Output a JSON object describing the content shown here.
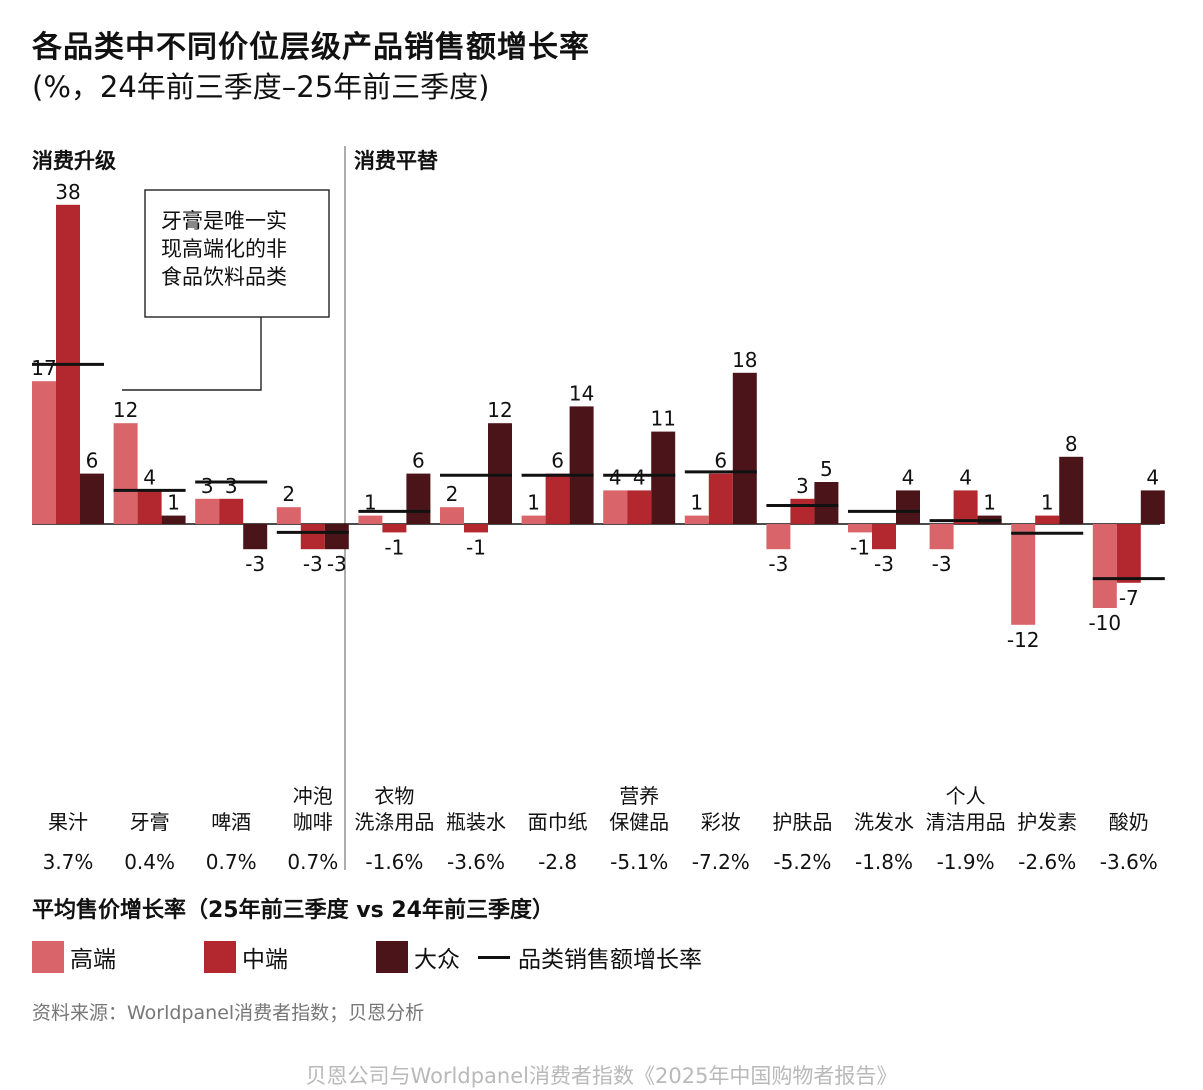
{
  "title": "各品类中不同价位层级产品销售额增长率",
  "subtitle": "(%，24年前三季度–25年前三季度)",
  "price_growth_title": "平均售价增长率（25年前三季度 vs 24年前三季度）",
  "source": "资料来源：Worldpanel消费者指数；贝恩分析",
  "footer": "贝恩公司与Worldpanel消费者指数《2025年中国购物者报告》",
  "annotation": {
    "lines": [
      "牙膏是唯一实",
      "现高端化的非",
      "食品饮料品类"
    ]
  },
  "colors": {
    "high": "#d9646a",
    "mid": "#b2282e",
    "mass": "#4a1418",
    "category_line": "#111111"
  },
  "legend": {
    "high": "高端",
    "mid": "中端",
    "mass": "大众",
    "line": "品类销售额增长率"
  },
  "chart_data": {
    "type": "bar",
    "groups": [
      {
        "label": "消费升级",
        "categories": [
          "果汁",
          "牙膏",
          "啤酒",
          "冲泡咖啡"
        ]
      },
      {
        "label": "消费平替",
        "categories": [
          "衣物洗涤用品",
          "瓶装水",
          "面巾纸",
          "营养保健品",
          "彩妆",
          "护肤品",
          "洗发水",
          "个人清洁用品",
          "护发素",
          "酸奶"
        ]
      }
    ],
    "categories": [
      {
        "name": [
          "果汁"
        ],
        "high": 17,
        "mid": 38,
        "mass": 6,
        "category_growth": 19,
        "price_growth": "3.7%"
      },
      {
        "name": [
          "牙膏"
        ],
        "high": 12,
        "mid": 4,
        "mass": 1,
        "category_growth": 4,
        "price_growth": "0.4%"
      },
      {
        "name": [
          "啤酒"
        ],
        "high": 3,
        "mid": 3,
        "mass": -3,
        "category_growth": 5,
        "price_growth": "0.7%"
      },
      {
        "name": [
          "冲泡",
          "咖啡"
        ],
        "high": 2,
        "mid": -3,
        "mass": -3,
        "category_growth": -1,
        "price_growth": "0.7%"
      },
      {
        "name": [
          "衣物",
          "洗涤用品"
        ],
        "high": 1,
        "mid": -1,
        "mass": 6,
        "category_growth": 1.5,
        "price_growth": "-1.6%"
      },
      {
        "name": [
          "瓶装水"
        ],
        "high": 2,
        "mid": -1,
        "mass": 12,
        "category_growth": 5.8,
        "price_growth": "-3.6%"
      },
      {
        "name": [
          "面巾纸"
        ],
        "high": 1,
        "mid": 6,
        "mass": 14,
        "category_growth": 5.8,
        "price_growth": "-2.8"
      },
      {
        "name": [
          "营养",
          "保健品"
        ],
        "high": 4,
        "mid": 4,
        "mass": 11,
        "category_growth": 5.8,
        "price_growth": "-5.1%"
      },
      {
        "name": [
          "彩妆"
        ],
        "high": 1,
        "mid": 6,
        "mass": 18,
        "category_growth": 6.2,
        "price_growth": "-7.2%"
      },
      {
        "name": [
          "护肤品"
        ],
        "high": -3,
        "mid": 3,
        "mass": 5,
        "category_growth": 2.2,
        "price_growth": "-5.2%"
      },
      {
        "name": [
          "洗发水"
        ],
        "high": -1,
        "mid": -3,
        "mass": 4,
        "category_growth": 1.5,
        "price_growth": "-1.8%"
      },
      {
        "name": [
          "个人",
          "清洁用品"
        ],
        "high": -3,
        "mid": 4,
        "mass": 1,
        "category_growth": 0.4,
        "price_growth": "-1.9%"
      },
      {
        "name": [
          "护发素"
        ],
        "high": -12,
        "mid": 1,
        "mass": 8,
        "category_growth": -1.1,
        "price_growth": "-2.6%"
      },
      {
        "name": [
          "酸奶"
        ],
        "high": -10,
        "mid": -7,
        "mass": 4,
        "category_growth": -6.5,
        "price_growth": "-3.6%"
      }
    ],
    "ylim": [
      -13,
      19
    ],
    "grid": false,
    "legend_position": "bottom-left"
  }
}
